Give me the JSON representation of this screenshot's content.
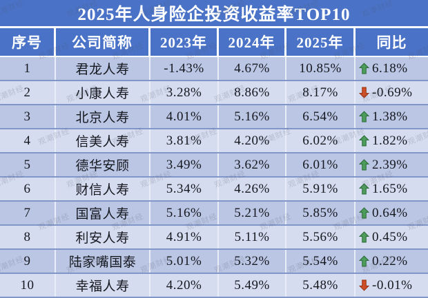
{
  "title": "2025年人身险企投资收益率TOP10",
  "watermark": {
    "text": "观潮财经"
  },
  "columns": [
    "序号",
    "公司简称",
    "2023年",
    "2024年",
    "2025年",
    "同比"
  ],
  "rows": [
    {
      "no": "1",
      "company": "君龙人寿",
      "y2023": "-1.43%",
      "y2024": "4.67%",
      "y2025": "10.85%",
      "yoy": "6.18%",
      "trend": "up"
    },
    {
      "no": "2",
      "company": "小康人寿",
      "y2023": "3.28%",
      "y2024": "8.86%",
      "y2025": "8.17%",
      "yoy": "-0.69%",
      "trend": "down"
    },
    {
      "no": "3",
      "company": "北京人寿",
      "y2023": "4.01%",
      "y2024": "5.16%",
      "y2025": "6.54%",
      "yoy": "1.38%",
      "trend": "up"
    },
    {
      "no": "4",
      "company": "信美人寿",
      "y2023": "3.81%",
      "y2024": "4.20%",
      "y2025": "6.02%",
      "yoy": "1.82%",
      "trend": "up"
    },
    {
      "no": "5",
      "company": "德华安顾",
      "y2023": "3.49%",
      "y2024": "3.62%",
      "y2025": "6.01%",
      "yoy": "2.39%",
      "trend": "up"
    },
    {
      "no": "6",
      "company": "财信人寿",
      "y2023": "5.34%",
      "y2024": "4.26%",
      "y2025": "5.91%",
      "yoy": "1.65%",
      "trend": "up"
    },
    {
      "no": "7",
      "company": "国富人寿",
      "y2023": "5.16%",
      "y2024": "5.21%",
      "y2025": "5.85%",
      "yoy": "0.64%",
      "trend": "up"
    },
    {
      "no": "8",
      "company": "利安人寿",
      "y2023": "4.91%",
      "y2024": "5.11%",
      "y2025": "5.56%",
      "yoy": "0.45%",
      "trend": "up"
    },
    {
      "no": "9",
      "company": "陆家嘴国泰",
      "y2023": "5.01%",
      "y2024": "5.32%",
      "y2025": "5.54%",
      "yoy": "0.22%",
      "trend": "up"
    },
    {
      "no": "10",
      "company": "幸福人寿",
      "y2023": "4.20%",
      "y2024": "5.49%",
      "y2025": "5.48%",
      "yoy": "-0.01%",
      "trend": "down"
    }
  ],
  "colors": {
    "header_bg": "#4A73C8",
    "row_dark": "#BBC6E4",
    "row_light": "#D6DCF0",
    "row_border": "#8095C8",
    "up_arrow_green": "#4E9C5C",
    "down_arrow_red": "#CE4F27"
  },
  "chart_data": {
    "type": "table",
    "title": "2025年人身险企投资收益率TOP10",
    "columns": [
      "序号",
      "公司简称",
      "2023年",
      "2024年",
      "2025年",
      "同比"
    ],
    "rows": [
      {
        "rank": 1,
        "company": "君龙人寿",
        "y2023_pct": -1.43,
        "y2024_pct": 4.67,
        "y2025_pct": 10.85,
        "yoy_pct": 6.18,
        "trend": "up"
      },
      {
        "rank": 2,
        "company": "小康人寿",
        "y2023_pct": 3.28,
        "y2024_pct": 8.86,
        "y2025_pct": 8.17,
        "yoy_pct": -0.69,
        "trend": "down"
      },
      {
        "rank": 3,
        "company": "北京人寿",
        "y2023_pct": 4.01,
        "y2024_pct": 5.16,
        "y2025_pct": 6.54,
        "yoy_pct": 1.38,
        "trend": "up"
      },
      {
        "rank": 4,
        "company": "信美人寿",
        "y2023_pct": 3.81,
        "y2024_pct": 4.2,
        "y2025_pct": 6.02,
        "yoy_pct": 1.82,
        "trend": "up"
      },
      {
        "rank": 5,
        "company": "德华安顾",
        "y2023_pct": 3.49,
        "y2024_pct": 3.62,
        "y2025_pct": 6.01,
        "yoy_pct": 2.39,
        "trend": "up"
      },
      {
        "rank": 6,
        "company": "财信人寿",
        "y2023_pct": 5.34,
        "y2024_pct": 4.26,
        "y2025_pct": 5.91,
        "yoy_pct": 1.65,
        "trend": "up"
      },
      {
        "rank": 7,
        "company": "国富人寿",
        "y2023_pct": 5.16,
        "y2024_pct": 5.21,
        "y2025_pct": 5.85,
        "yoy_pct": 0.64,
        "trend": "up"
      },
      {
        "rank": 8,
        "company": "利安人寿",
        "y2023_pct": 4.91,
        "y2024_pct": 5.11,
        "y2025_pct": 5.56,
        "yoy_pct": 0.45,
        "trend": "up"
      },
      {
        "rank": 9,
        "company": "陆家嘴国泰",
        "y2023_pct": 5.01,
        "y2024_pct": 5.32,
        "y2025_pct": 5.54,
        "yoy_pct": 0.22,
        "trend": "up"
      },
      {
        "rank": 10,
        "company": "幸福人寿",
        "y2023_pct": 4.2,
        "y2024_pct": 5.49,
        "y2025_pct": 5.48,
        "yoy_pct": -0.01,
        "trend": "down"
      }
    ]
  }
}
